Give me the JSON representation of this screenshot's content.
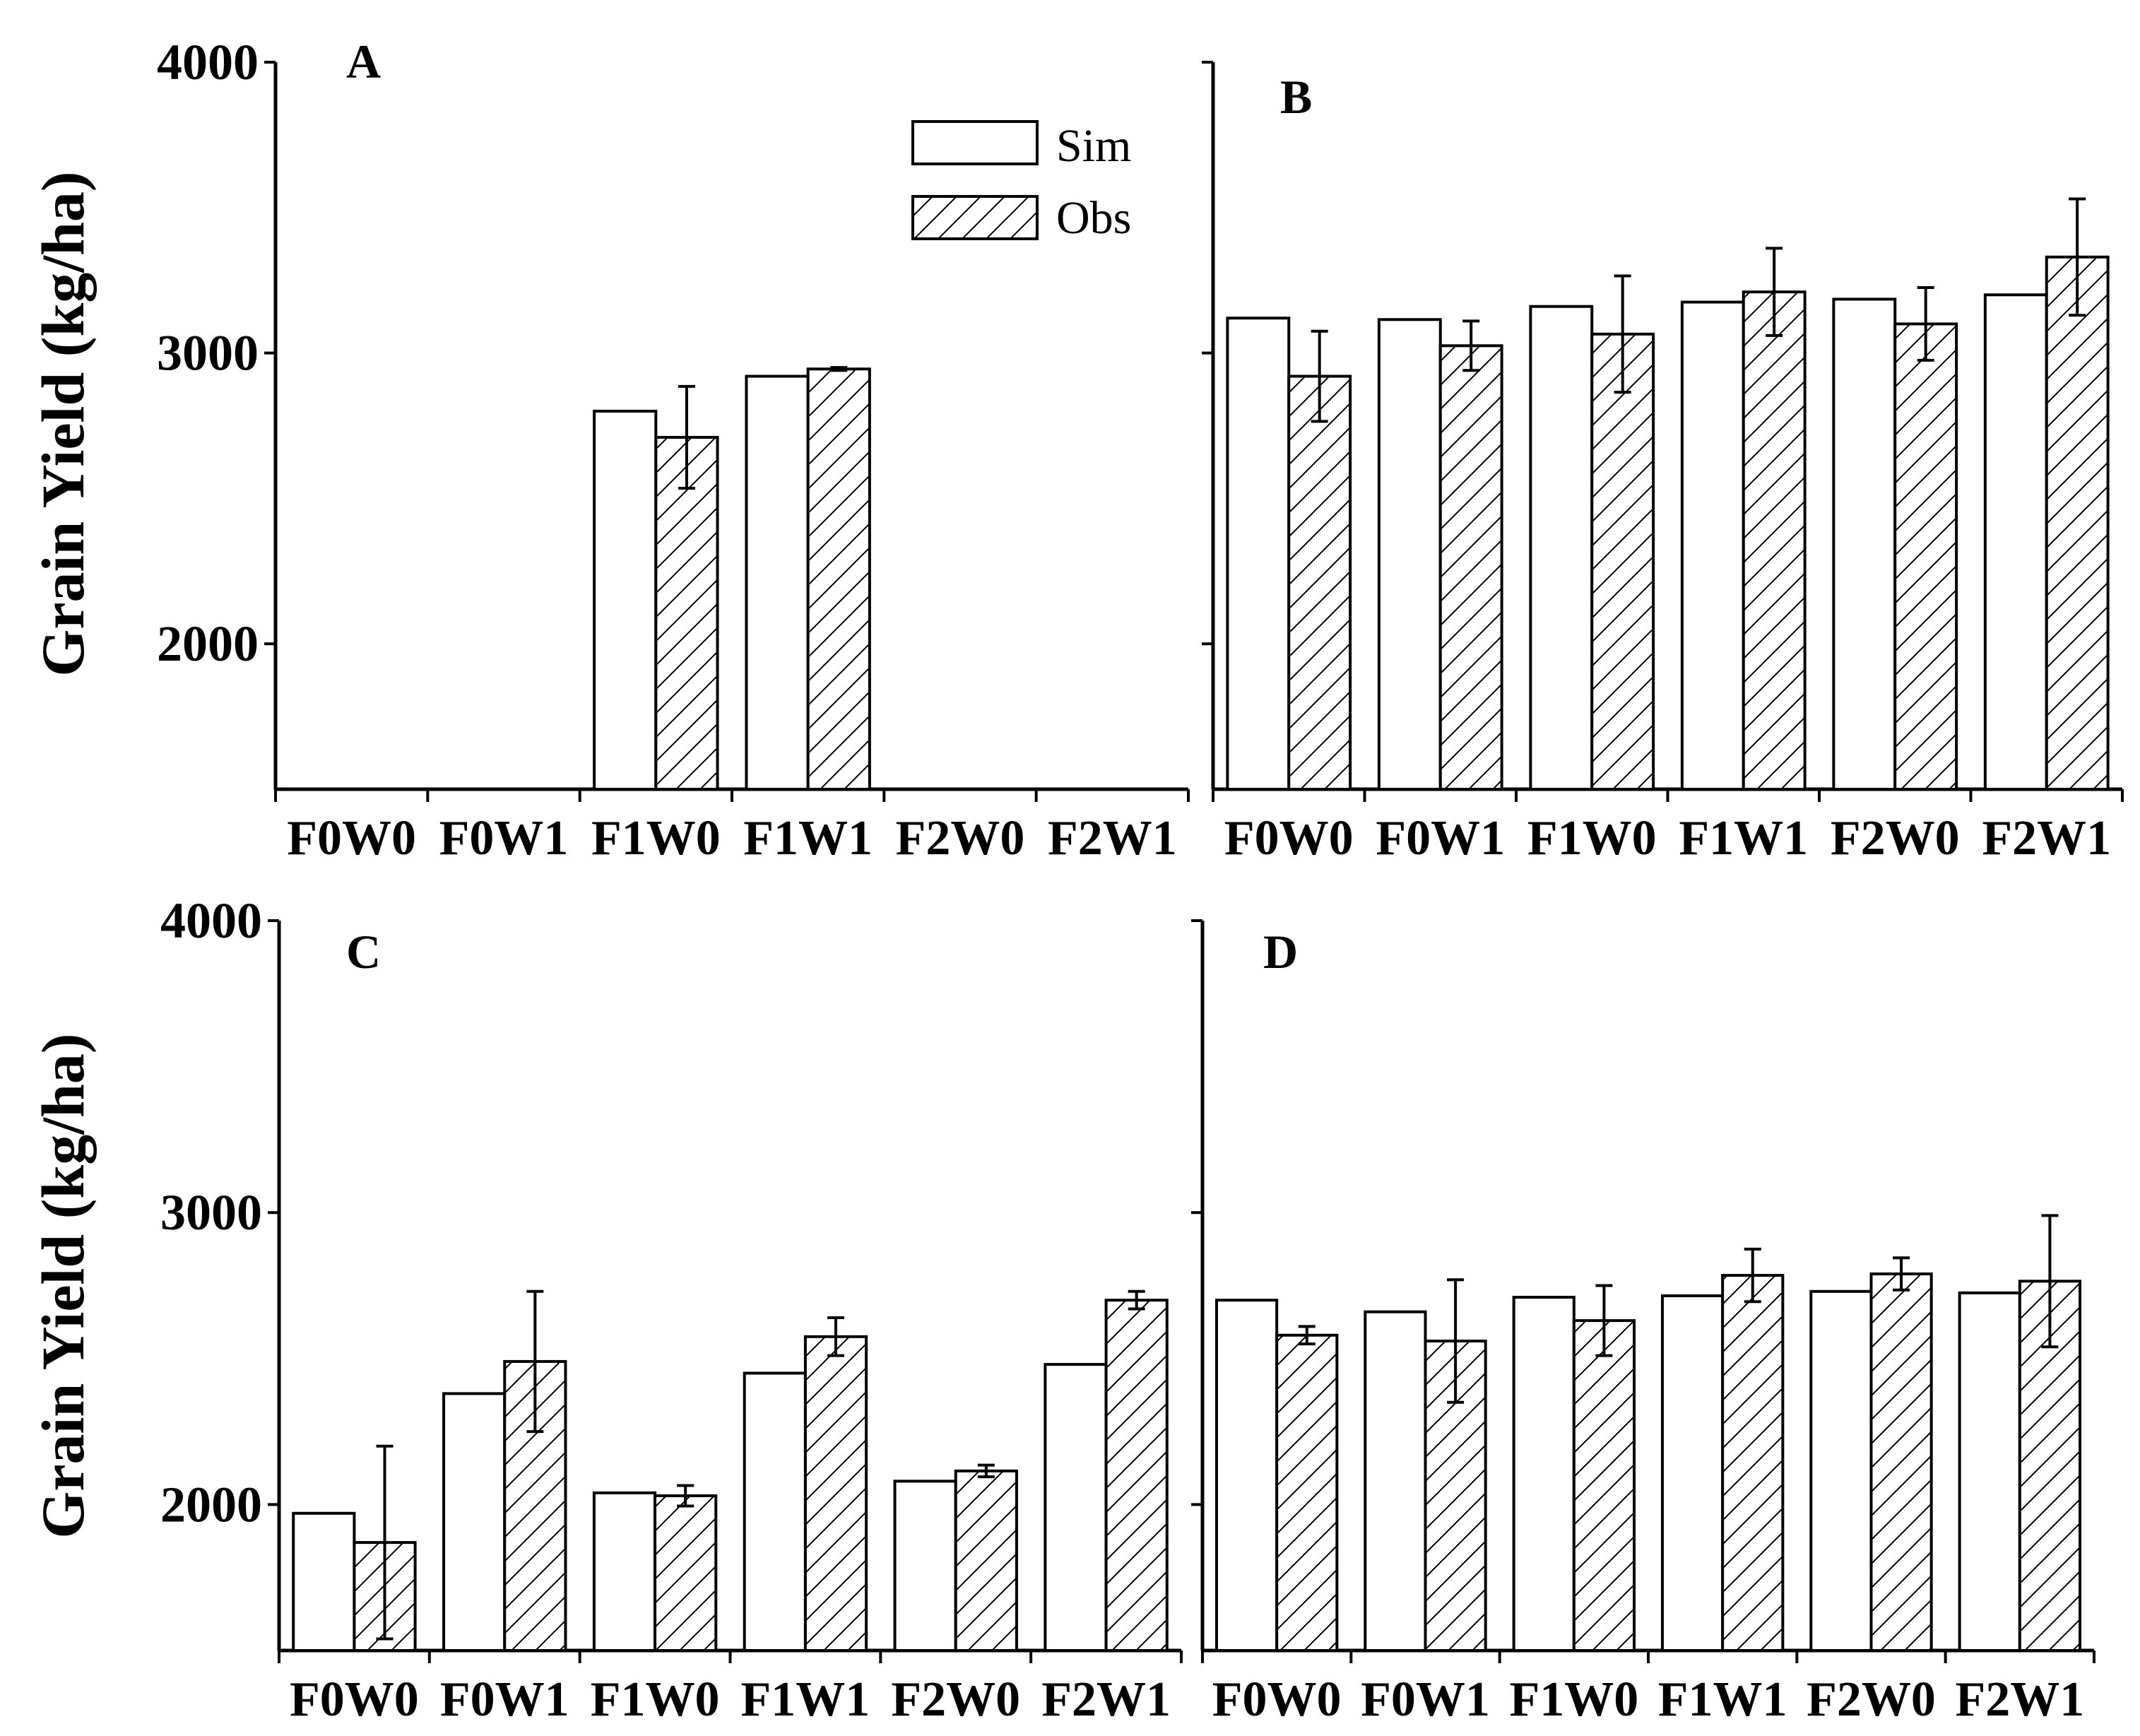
{
  "chart_data": [
    {
      "type": "bar",
      "panel": "A",
      "title": "A",
      "ylabel": "Grain Yield (kg/ha)",
      "ylim": [
        1500,
        4000
      ],
      "yticks": [
        2000,
        3000,
        4000
      ],
      "ytick_labels": [
        "2000",
        "3000",
        "4000"
      ],
      "categories": [
        "F0W0",
        "F0W1",
        "F1W0",
        "F1W1",
        "F2W0",
        "F2W1"
      ],
      "series": [
        {
          "name": "Sim",
          "values": [
            null,
            null,
            2800,
            2920,
            null,
            null
          ]
        },
        {
          "name": "Obs",
          "values": [
            null,
            null,
            2710,
            2945,
            null,
            null
          ],
          "errors": [
            null,
            null,
            175,
            5,
            null,
            null
          ]
        }
      ],
      "legend": {
        "entries": [
          "Sim",
          "Obs"
        ],
        "position": "top-right"
      }
    },
    {
      "type": "bar",
      "panel": "B",
      "title": "B",
      "ylabel": "",
      "ylim": [
        1500,
        4000
      ],
      "yticks": [
        2000,
        3000,
        4000
      ],
      "ytick_labels": [
        "",
        "",
        ""
      ],
      "categories": [
        "F0W0",
        "F0W1",
        "F1W0",
        "F1W1",
        "F2W0",
        "F2W1"
      ],
      "series": [
        {
          "name": "Sim",
          "values": [
            3120,
            3115,
            3160,
            3175,
            3185,
            3200
          ]
        },
        {
          "name": "Obs",
          "values": [
            2920,
            3025,
            3065,
            3210,
            3100,
            3330
          ],
          "errors": [
            155,
            85,
            200,
            150,
            125,
            200
          ]
        }
      ]
    },
    {
      "type": "bar",
      "panel": "C",
      "title": "C",
      "ylabel": "Grain Yield (kg/ha)",
      "ylim": [
        1500,
        4000
      ],
      "yticks": [
        2000,
        3000,
        4000
      ],
      "ytick_labels": [
        "2000",
        "3000",
        "4000"
      ],
      "categories": [
        "F0W0",
        "F0W1",
        "F1W0",
        "F1W1",
        "F2W0",
        "F2W1"
      ],
      "series": [
        {
          "name": "Sim",
          "values": [
            1970,
            2380,
            2040,
            2450,
            2080,
            2480
          ]
        },
        {
          "name": "Obs",
          "values": [
            1870,
            2490,
            2030,
            2575,
            2115,
            2700
          ],
          "errors": [
            330,
            240,
            35,
            65,
            20,
            30
          ]
        }
      ]
    },
    {
      "type": "bar",
      "panel": "D",
      "title": "D",
      "ylabel": "",
      "ylim": [
        1500,
        4000
      ],
      "yticks": [
        2000,
        3000,
        4000
      ],
      "ytick_labels": [
        "",
        "",
        ""
      ],
      "categories": [
        "F0W0",
        "F0W1",
        "F1W0",
        "F1W1",
        "F2W0",
        "F2W1"
      ],
      "series": [
        {
          "name": "Sim",
          "values": [
            2700,
            2660,
            2710,
            2715,
            2730,
            2725
          ]
        },
        {
          "name": "Obs",
          "values": [
            2580,
            2560,
            2630,
            2785,
            2790,
            2765
          ],
          "errors": [
            30,
            210,
            120,
            90,
            55,
            225
          ]
        }
      ]
    }
  ]
}
